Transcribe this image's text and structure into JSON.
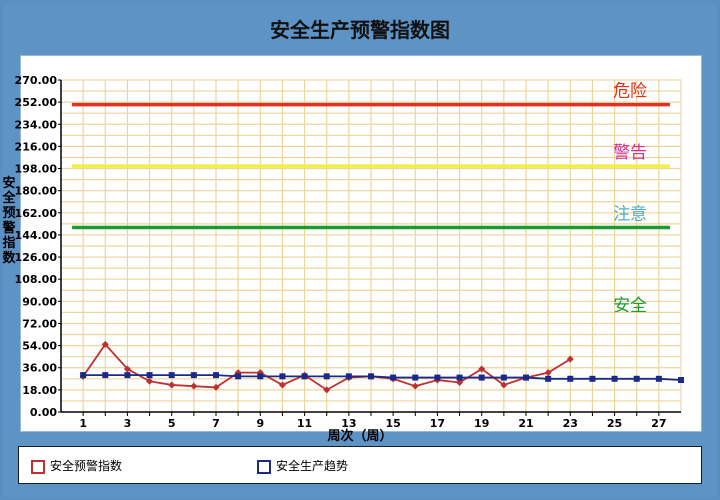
{
  "chart_data": {
    "type": "line",
    "title": "安全生产预警指数图",
    "xlabel": "周次（周）",
    "ylabel": "安全预警指数",
    "ylim": [
      0,
      270
    ],
    "yticks": [
      "0.00",
      "18.00",
      "36.00",
      "54.00",
      "72.00",
      "90.00",
      "108.00",
      "126.00",
      "144.00",
      "162.00",
      "180.00",
      "198.00",
      "216.00",
      "234.00",
      "252.00",
      "270.00"
    ],
    "xticks": [
      1,
      3,
      5,
      7,
      9,
      11,
      13,
      15,
      17,
      19,
      21,
      23,
      25,
      27
    ],
    "xlim": [
      0,
      28
    ],
    "grid": true,
    "thresholds": [
      {
        "label": "危险",
        "value": 250,
        "color": "#e03020"
      },
      {
        "label": "警告",
        "value": 200,
        "color": "#f0f040"
      },
      {
        "label": "注意",
        "value": 150,
        "color": "#1a9a30"
      }
    ],
    "zone_labels": [
      {
        "label": "危险",
        "color": "#e03020"
      },
      {
        "label": "警告",
        "color": "#d03090"
      },
      {
        "label": "注意",
        "color": "#4db0d0"
      },
      {
        "label": "安全",
        "color": "#1a9a30"
      }
    ],
    "series": [
      {
        "name": "安全预警指数",
        "color": "#c03030",
        "x": [
          1,
          2,
          3,
          4,
          5,
          6,
          7,
          8,
          9,
          10,
          11,
          12,
          13,
          14,
          15,
          16,
          17,
          18,
          19,
          20,
          21,
          22,
          23
        ],
        "values": [
          29,
          55,
          35,
          25,
          22,
          21,
          20,
          32,
          32,
          22,
          30,
          18,
          28,
          29,
          27,
          21,
          26,
          24,
          35,
          22,
          28,
          32,
          43
        ]
      },
      {
        "name": "安全生产趋势",
        "color": "#1a2a8a",
        "x": [
          1,
          2,
          3,
          4,
          5,
          6,
          7,
          8,
          9,
          10,
          11,
          12,
          13,
          14,
          15,
          16,
          17,
          18,
          19,
          20,
          21,
          22,
          23,
          24,
          25,
          26,
          27,
          28
        ],
        "values": [
          30,
          30,
          30,
          30,
          30,
          30,
          30,
          29,
          29,
          29,
          29,
          29,
          29,
          29,
          28,
          28,
          28,
          28,
          28,
          28,
          28,
          27,
          27,
          27,
          27,
          27,
          27,
          26
        ]
      }
    ]
  }
}
